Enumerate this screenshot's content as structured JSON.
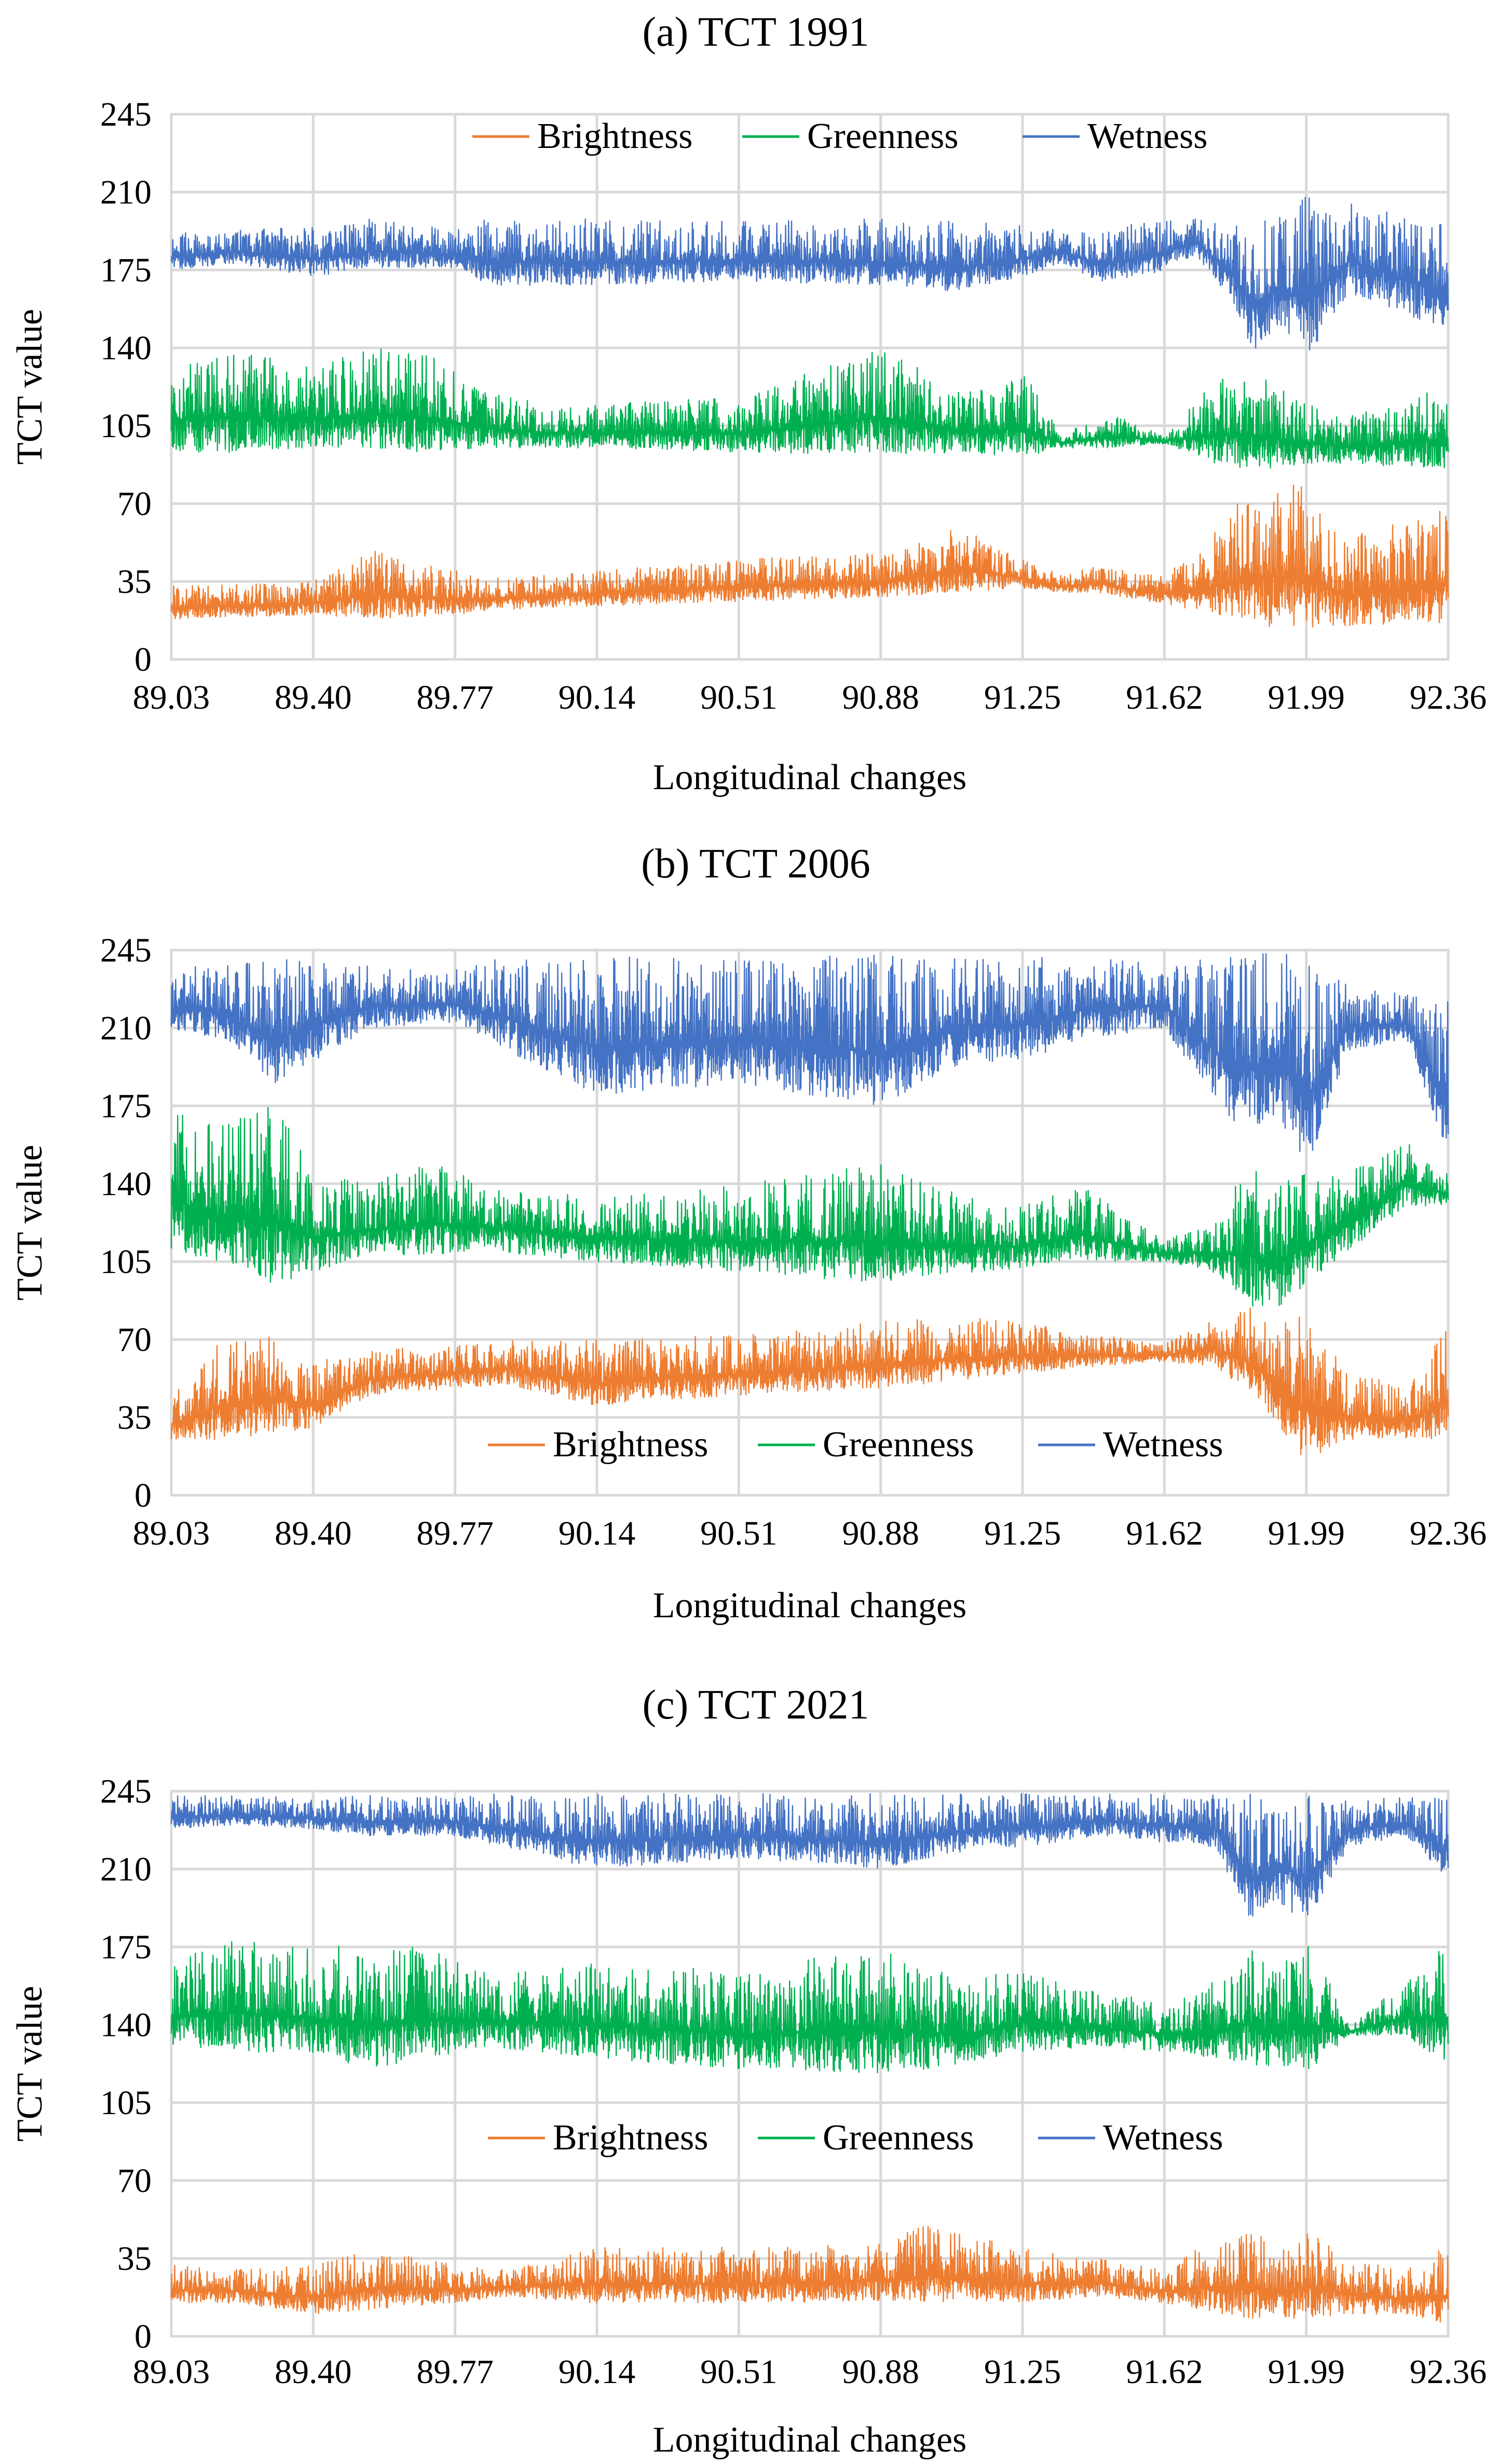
{
  "figure": {
    "xlabel": "Longitudinal changes",
    "ylabel": "TCT value"
  },
  "colors": {
    "brightness": "#ed7d31",
    "greenness": "#00b050",
    "wetness": "#4472c4",
    "grid": "#d9d9d9"
  },
  "chart_data": [
    {
      "type": "line",
      "title": "(a) TCT 1991",
      "xlabel": "Longitudinal changes",
      "ylabel": "TCT value",
      "x_ticks": [
        "89.03",
        "89.40",
        "89.77",
        "90.14",
        "90.51",
        "90.88",
        "91.25",
        "91.62",
        "91.99",
        "92.36"
      ],
      "y_ticks": [
        "0",
        "35",
        "70",
        "105",
        "140",
        "175",
        "210",
        "245"
      ],
      "xlim": [
        89.03,
        92.36
      ],
      "ylim": [
        0,
        245
      ],
      "grid": true,
      "legend": "top-center",
      "series": [
        {
          "name": "Brightness",
          "color": "#ed7d31",
          "x": [
            89.03,
            89.4,
            89.55,
            89.77,
            89.85,
            90.14,
            90.51,
            90.88,
            91.1,
            91.25,
            91.35,
            91.45,
            91.58,
            91.7,
            91.85,
            91.99,
            92.1,
            92.36
          ],
          "low": [
            18,
            20,
            18,
            20,
            22,
            24,
            26,
            28,
            30,
            32,
            30,
            30,
            26,
            22,
            15,
            14,
            15,
            16
          ],
          "high": [
            33,
            35,
            50,
            40,
            36,
            40,
            45,
            48,
            60,
            45,
            38,
            42,
            38,
            45,
            80,
            78,
            55,
            68
          ]
        },
        {
          "name": "Greenness",
          "color": "#00b050",
          "x": [
            89.03,
            89.2,
            89.4,
            89.55,
            89.7,
            89.85,
            90.0,
            90.14,
            90.51,
            90.88,
            91.1,
            91.25,
            91.35,
            91.5,
            91.62,
            91.75,
            91.85,
            91.99,
            92.1,
            92.36
          ],
          "low": [
            93,
            93,
            95,
            95,
            93,
            95,
            95,
            95,
            93,
            92,
            93,
            90,
            95,
            95,
            97,
            88,
            85,
            88,
            88,
            85
          ],
          "high": [
            135,
            138,
            132,
            140,
            138,
            120,
            115,
            115,
            118,
            140,
            120,
            130,
            102,
            110,
            100,
            125,
            130,
            115,
            110,
            125
          ]
        },
        {
          "name": "Wetness",
          "color": "#4472c4",
          "x": [
            89.03,
            89.2,
            89.4,
            89.55,
            89.77,
            89.85,
            90.14,
            90.51,
            90.88,
            91.1,
            91.25,
            91.35,
            91.45,
            91.58,
            91.7,
            91.8,
            91.85,
            91.92,
            91.99,
            92.1,
            92.25,
            92.36
          ],
          "low": [
            175,
            178,
            172,
            176,
            176,
            168,
            168,
            170,
            168,
            165,
            172,
            178,
            170,
            172,
            182,
            160,
            138,
            150,
            135,
            165,
            155,
            148
          ],
          "high": [
            192,
            193,
            195,
            198,
            193,
            198,
            198,
            197,
            198,
            197,
            195,
            193,
            192,
            198,
            198,
            197,
            195,
            200,
            210,
            205,
            200,
            197
          ]
        }
      ]
    },
    {
      "type": "line",
      "title": "(b) TCT 2006",
      "xlabel": "Longitudinal changes",
      "ylabel": "TCT value",
      "x_ticks": [
        "89.03",
        "89.40",
        "89.77",
        "90.14",
        "90.51",
        "90.88",
        "91.25",
        "91.62",
        "91.99",
        "92.36"
      ],
      "y_ticks": [
        "0",
        "35",
        "70",
        "105",
        "140",
        "175",
        "210",
        "245"
      ],
      "xlim": [
        89.03,
        92.36
      ],
      "ylim": [
        0,
        245
      ],
      "grid": true,
      "legend": "bottom-center",
      "series": [
        {
          "name": "Brightness",
          "color": "#ed7d31",
          "x": [
            89.03,
            89.15,
            89.3,
            89.4,
            89.55,
            89.77,
            89.9,
            90.14,
            90.51,
            90.88,
            91.1,
            91.25,
            91.45,
            91.62,
            91.75,
            91.85,
            91.99,
            92.1,
            92.25,
            92.36
          ],
          "low": [
            25,
            25,
            28,
            30,
            45,
            48,
            50,
            40,
            45,
            48,
            52,
            55,
            58,
            60,
            58,
            45,
            15,
            25,
            25,
            25
          ],
          "high": [
            45,
            68,
            72,
            60,
            65,
            68,
            70,
            70,
            72,
            78,
            80,
            78,
            72,
            68,
            80,
            85,
            80,
            55,
            50,
            75
          ]
        },
        {
          "name": "Greenness",
          "color": "#00b050",
          "x": [
            89.03,
            89.15,
            89.3,
            89.4,
            89.55,
            89.7,
            89.85,
            90.14,
            90.51,
            90.88,
            91.1,
            91.25,
            91.4,
            91.62,
            91.75,
            91.85,
            91.92,
            91.99,
            92.1,
            92.25,
            92.36
          ],
          "low": [
            110,
            105,
            95,
            100,
            108,
            108,
            110,
            105,
            100,
            95,
            100,
            102,
            105,
            105,
            100,
            85,
            85,
            95,
            110,
            130,
            130
          ],
          "high": [
            175,
            165,
            178,
            145,
            140,
            150,
            140,
            135,
            140,
            150,
            135,
            130,
            140,
            115,
            125,
            150,
            140,
            145,
            145,
            160,
            145
          ]
        },
        {
          "name": "Wetness",
          "color": "#4472c4",
          "x": [
            89.03,
            89.15,
            89.3,
            89.4,
            89.55,
            89.77,
            89.9,
            90.14,
            90.51,
            90.88,
            91.1,
            91.25,
            91.4,
            91.62,
            91.8,
            91.85,
            91.92,
            91.99,
            92.1,
            92.25,
            92.36
          ],
          "low": [
            210,
            205,
            185,
            195,
            210,
            212,
            200,
            180,
            185,
            175,
            195,
            195,
            205,
            210,
            165,
            165,
            170,
            145,
            200,
            205,
            150
          ],
          "high": [
            235,
            240,
            242,
            240,
            238,
            237,
            242,
            242,
            242,
            243,
            242,
            242,
            242,
            240,
            242,
            243,
            245,
            240,
            230,
            225,
            225
          ]
        }
      ]
    },
    {
      "type": "line",
      "title": "(c) TCT 2021",
      "xlabel": "Longitudinal changes",
      "ylabel": "TCT value",
      "x_ticks": [
        "89.03",
        "89.40",
        "89.77",
        "90.14",
        "90.51",
        "90.88",
        "91.25",
        "91.62",
        "91.99",
        "92.36"
      ],
      "y_ticks": [
        "0",
        "35",
        "70",
        "105",
        "140",
        "175",
        "210",
        "245"
      ],
      "xlim": [
        89.03,
        92.36
      ],
      "ylim": [
        0,
        245
      ],
      "grid": true,
      "legend": "center",
      "series": [
        {
          "name": "Brightness",
          "color": "#ed7d31",
          "x": [
            89.03,
            89.2,
            89.4,
            89.55,
            89.77,
            89.9,
            90.14,
            90.51,
            90.88,
            91.0,
            91.25,
            91.45,
            91.62,
            91.75,
            91.85,
            91.92,
            91.99,
            92.1,
            92.25,
            92.36
          ],
          "low": [
            15,
            15,
            10,
            12,
            15,
            18,
            15,
            15,
            16,
            15,
            15,
            18,
            15,
            10,
            8,
            8,
            8,
            10,
            10,
            5
          ],
          "high": [
            32,
            30,
            32,
            40,
            32,
            30,
            40,
            40,
            42,
            50,
            40,
            35,
            30,
            45,
            48,
            40,
            50,
            35,
            30,
            42
          ]
        },
        {
          "name": "Greenness",
          "color": "#00b050",
          "x": [
            89.03,
            89.2,
            89.4,
            89.55,
            89.7,
            89.85,
            90.14,
            90.51,
            90.88,
            91.1,
            91.25,
            91.45,
            91.62,
            91.75,
            91.85,
            91.92,
            91.99,
            92.1,
            92.25,
            92.36
          ],
          "low": [
            130,
            128,
            125,
            120,
            125,
            130,
            125,
            120,
            118,
            122,
            128,
            130,
            128,
            125,
            122,
            120,
            118,
            135,
            135,
            122
          ],
          "high": [
            170,
            178,
            175,
            178,
            175,
            165,
            168,
            165,
            175,
            160,
            165,
            155,
            150,
            160,
            175,
            165,
            182,
            140,
            160,
            178
          ]
        },
        {
          "name": "Wetness",
          "color": "#4472c4",
          "x": [
            89.03,
            89.2,
            89.4,
            89.55,
            89.77,
            89.9,
            90.14,
            90.51,
            90.88,
            91.1,
            91.25,
            91.45,
            91.62,
            91.75,
            91.85,
            91.92,
            91.99,
            92.1,
            92.25,
            92.36
          ],
          "low": [
            228,
            230,
            228,
            225,
            225,
            220,
            210,
            215,
            210,
            218,
            220,
            225,
            222,
            220,
            185,
            195,
            185,
            220,
            225,
            205
          ],
          "high": [
            243,
            243,
            242,
            243,
            243,
            244,
            244,
            244,
            244,
            244,
            244,
            244,
            244,
            244,
            244,
            243,
            243,
            242,
            242,
            242
          ]
        }
      ]
    }
  ]
}
